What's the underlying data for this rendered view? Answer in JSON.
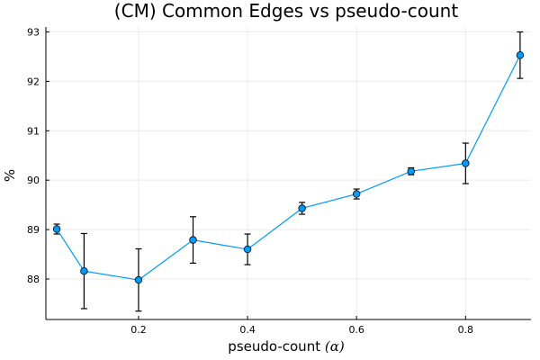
{
  "chart_data": {
    "type": "scatter",
    "title": "(CM) Common Edges vs pseudo-count",
    "xlabel_prefix": "pseudo-count ",
    "xlabel_math": "(α)",
    "ylabel": "%",
    "xlim": [
      0.03,
      0.92
    ],
    "ylim": [
      87.18,
      93.1
    ],
    "xticks": [
      0.2,
      0.4,
      0.6,
      0.8
    ],
    "xtick_labels": [
      "0.2",
      "0.4",
      "0.6",
      "0.8"
    ],
    "yticks": [
      88,
      89,
      90,
      91,
      92,
      93
    ],
    "ytick_labels": [
      "88",
      "89",
      "90",
      "91",
      "92",
      "93"
    ],
    "grid": true,
    "legend": "none",
    "color": "#009AFA",
    "series": [
      {
        "x": [
          0.05,
          0.1,
          0.2,
          0.3,
          0.4,
          0.5,
          0.6,
          0.7,
          0.8,
          0.9
        ],
        "y": [
          89.01,
          88.16,
          87.98,
          88.79,
          88.6,
          89.43,
          89.72,
          90.18,
          90.34,
          92.53
        ],
        "err": [
          0.1,
          0.76,
          0.63,
          0.47,
          0.31,
          0.12,
          0.1,
          0.07,
          0.41,
          0.47
        ]
      }
    ]
  }
}
